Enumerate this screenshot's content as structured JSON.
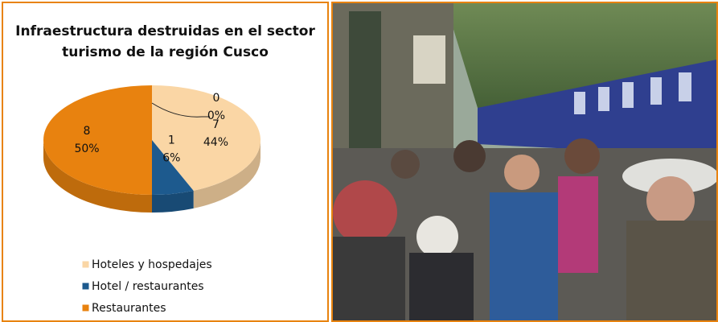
{
  "chart_data": {
    "type": "pie3d",
    "title": "Infraestructura destruidas en el sector turismo de la región Cusco",
    "categories": [
      "Hoteles y hospedajes",
      "Hotel / restaurantes",
      "Restaurantes",
      null
    ],
    "values": [
      7,
      1,
      8,
      0
    ],
    "percentages": [
      44,
      6,
      50,
      0
    ],
    "percentage_labels": [
      "44%",
      "6%",
      "50%",
      "0%"
    ],
    "colors": [
      "#fad6a5",
      "#1d5a8e",
      "#e8820f",
      "#bdbdbd"
    ],
    "legend": "bottom"
  }
}
